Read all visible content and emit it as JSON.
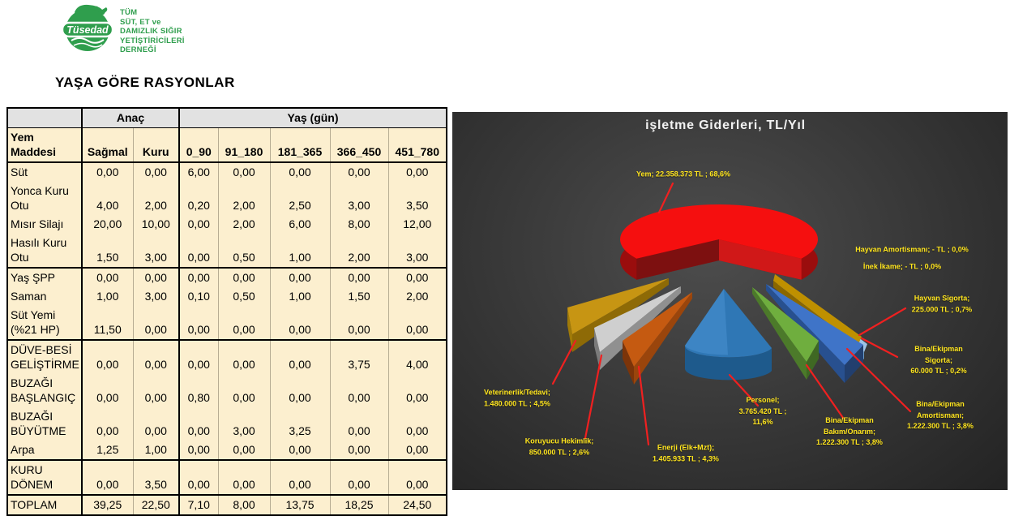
{
  "logo": {
    "badge_text": "Tüsedad",
    "org_name": "TÜM\nSÜT, ET ve\nDAMIZLIK SIĞIR\nYETİŞTİRİCİLERİ\nDERNEĞİ",
    "brand_green": "#2f9e4d"
  },
  "page_title": "YAŞA GÖRE RASYONLAR",
  "table": {
    "group_headers": {
      "anac": "Anaç",
      "yas": "Yaş (gün)"
    },
    "columns": [
      "Yem Maddesi",
      "Sağmal",
      "Kuru",
      "0_90",
      "91_180",
      "181_365",
      "366_450",
      "451_780"
    ],
    "groups": [
      {
        "rows": [
          {
            "label": "Süt",
            "values": [
              "0,00",
              "0,00",
              "6,00",
              "0,00",
              "0,00",
              "0,00",
              "0,00"
            ]
          },
          {
            "label": "Yonca Kuru Otu",
            "values": [
              "4,00",
              "2,00",
              "0,20",
              "2,00",
              "2,50",
              "3,00",
              "3,50"
            ]
          },
          {
            "label": "Mısır Silajı",
            "values": [
              "20,00",
              "10,00",
              "0,00",
              "2,00",
              "6,00",
              "8,00",
              "12,00"
            ]
          },
          {
            "label": "Hasılı Kuru Otu",
            "values": [
              "1,50",
              "3,00",
              "0,00",
              "0,50",
              "1,00",
              "2,00",
              "3,00"
            ]
          }
        ]
      },
      {
        "rows": [
          {
            "label": "Yaş ŞPP",
            "values": [
              "0,00",
              "0,00",
              "0,00",
              "0,00",
              "0,00",
              "0,00",
              "0,00"
            ]
          },
          {
            "label": "Saman",
            "values": [
              "1,00",
              "3,00",
              "0,10",
              "0,50",
              "1,00",
              "1,50",
              "2,00"
            ]
          },
          {
            "label": "Süt Yemi (%21 HP)",
            "values": [
              "11,50",
              "0,00",
              "0,00",
              "0,00",
              "0,00",
              "0,00",
              "0,00"
            ]
          }
        ]
      },
      {
        "rows": [
          {
            "label": "DÜVE-BESİ GELİŞTİRME",
            "values": [
              "0,00",
              "0,00",
              "0,00",
              "0,00",
              "0,00",
              "3,75",
              "4,00"
            ]
          },
          {
            "label": "BUZAĞI BAŞLANGIÇ",
            "values": [
              "0,00",
              "0,00",
              "0,80",
              "0,00",
              "0,00",
              "0,00",
              "0,00"
            ]
          },
          {
            "label": "BUZAĞI BÜYÜTME",
            "values": [
              "0,00",
              "0,00",
              "0,00",
              "3,00",
              "3,25",
              "0,00",
              "0,00"
            ]
          },
          {
            "label": "Arpa",
            "values": [
              "1,25",
              "1,00",
              "0,00",
              "0,00",
              "0,00",
              "0,00",
              "0,00"
            ]
          }
        ]
      },
      {
        "rows": [
          {
            "label": "KURU DÖNEM",
            "values": [
              "0,00",
              "3,50",
              "0,00",
              "0,00",
              "0,00",
              "0,00",
              "0,00"
            ]
          }
        ]
      },
      {
        "rows": [
          {
            "label": "TOPLAM",
            "values": [
              "39,25",
              "22,50",
              "7,10",
              "8,00",
              "13,75",
              "18,25",
              "24,50"
            ]
          }
        ]
      }
    ]
  },
  "chart": {
    "title": "işletme Giderleri, TL/Yıl",
    "labels": {
      "yem": "Yem;  22.358.373 TL ; 68,6%",
      "hayvan_amort": "Hayvan Amortismanı;  -   TL ; 0,0%",
      "inek_ikame": "İnek İkame;  -   TL ; 0,0%",
      "hayvan_sigorta": "Hayvan Sigorta;\n225.000 TL ; 0,7%",
      "bina_sigorta": "Bina/Ekipman Sigorta;\n60.000 TL ; 0,2%",
      "bina_amort": "Bina/Ekipman\nAmortismanı;\n1.222.300 TL ; 3,8%",
      "bina_bakim": "Bina/Ekipman\nBakım/Onarım;\n1.222.300 TL ; 3,8%",
      "personel": "Personel;\n3.765.420 TL ;\n11,6%",
      "enerji": "Enerji (Elk+Mzt);\n1.405.933 TL ; 4,3%",
      "koruyucu": "Koruyucu Hekimlik;\n850.000 TL ; 2,6%",
      "veteriner": "Veterinerlik/Tedavi;\n1.480.000 TL ; 4,5%"
    }
  },
  "chart_data": {
    "type": "pie",
    "title": "işletme Giderleri, TL/Yıl",
    "unit": "TL/Yıl",
    "legend_position": "callout-labels",
    "slices": [
      {
        "name": "Yem",
        "value_tl": 22358373,
        "pct": 68.6,
        "color": "#f50f0f"
      },
      {
        "name": "Hayvan Amortismanı",
        "value_tl": 0,
        "pct": 0.0,
        "color": null
      },
      {
        "name": "İnek İkame",
        "value_tl": 0,
        "pct": 0.0,
        "color": null
      },
      {
        "name": "Hayvan Sigorta",
        "value_tl": 225000,
        "pct": 0.7,
        "color": "#bf9000"
      },
      {
        "name": "Bina/Ekipman Sigorta",
        "value_tl": 60000,
        "pct": 0.2,
        "color": "#9dc3e6"
      },
      {
        "name": "Bina/Ekipman Amortismanı",
        "value_tl": 1222300,
        "pct": 3.8,
        "color": "#3f74c8"
      },
      {
        "name": "Bina/Ekipman Bakım/Onarım",
        "value_tl": 1222300,
        "pct": 3.8,
        "color": "#6fae3e"
      },
      {
        "name": "Personel",
        "value_tl": 3765420,
        "pct": 11.6,
        "color": "#2f77b5"
      },
      {
        "name": "Enerji (Elk+Mzt)",
        "value_tl": 1405933,
        "pct": 4.3,
        "color": "#c55a11"
      },
      {
        "name": "Koruyucu Hekimlik",
        "value_tl": 850000,
        "pct": 2.6,
        "color": "#cfcfcf"
      },
      {
        "name": "Veterinerlik/Tedavi",
        "value_tl": 1480000,
        "pct": 4.5,
        "color": "#c79513"
      }
    ]
  }
}
